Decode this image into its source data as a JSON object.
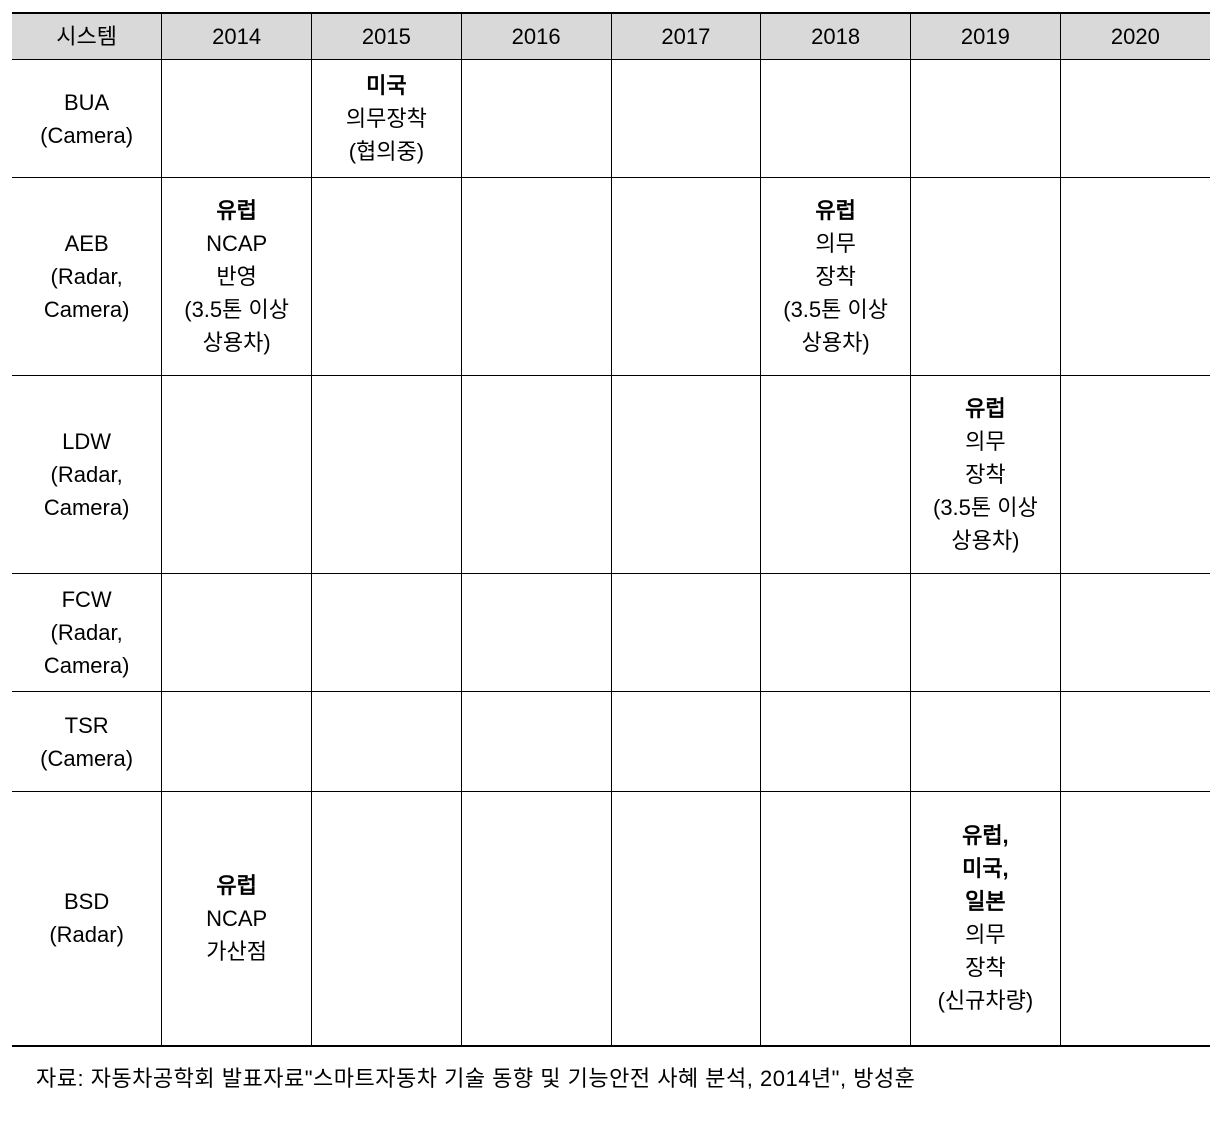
{
  "table": {
    "headers": [
      "시스템",
      "2014",
      "2015",
      "2016",
      "2017",
      "2018",
      "2019",
      "2020"
    ],
    "rows": [
      {
        "system": "BUA\n(Camera)",
        "cells": {
          "2015": {
            "bold": "미국",
            "lines": [
              "의무장착",
              "(협의중)"
            ]
          }
        }
      },
      {
        "system": "AEB\n(Radar,\nCamera)",
        "cells": {
          "2014": {
            "bold": "유럽",
            "lines": [
              "NCAP",
              "반영",
              "(3.5톤 이상",
              "상용차)"
            ]
          },
          "2018": {
            "bold": "유럽",
            "lines": [
              "의무",
              "장착",
              "(3.5톤 이상",
              "상용차)"
            ]
          }
        }
      },
      {
        "system": "LDW\n(Radar,\nCamera)",
        "cells": {
          "2019": {
            "bold": "유럽",
            "lines": [
              "의무",
              "장착",
              "(3.5톤 이상",
              "상용차)"
            ]
          }
        }
      },
      {
        "system": "FCW\n(Radar,\nCamera)",
        "cells": {}
      },
      {
        "system": "TSR\n(Camera)",
        "cells": {}
      },
      {
        "system": "BSD\n(Radar)",
        "cells": {
          "2014": {
            "bold": "유럽",
            "lines": [
              "NCAP",
              "가산점"
            ]
          },
          "2019": {
            "boldLines": [
              "유럽,",
              "미국,",
              "일본"
            ],
            "lines": [
              "의무",
              "장착",
              "(신규차량)"
            ]
          }
        }
      }
    ]
  },
  "source": "자료: 자동차공학회 발표자료\"스마트자동차 기술 동향 및 기능안전 사혜 분석, 2014년\", 방성훈"
}
